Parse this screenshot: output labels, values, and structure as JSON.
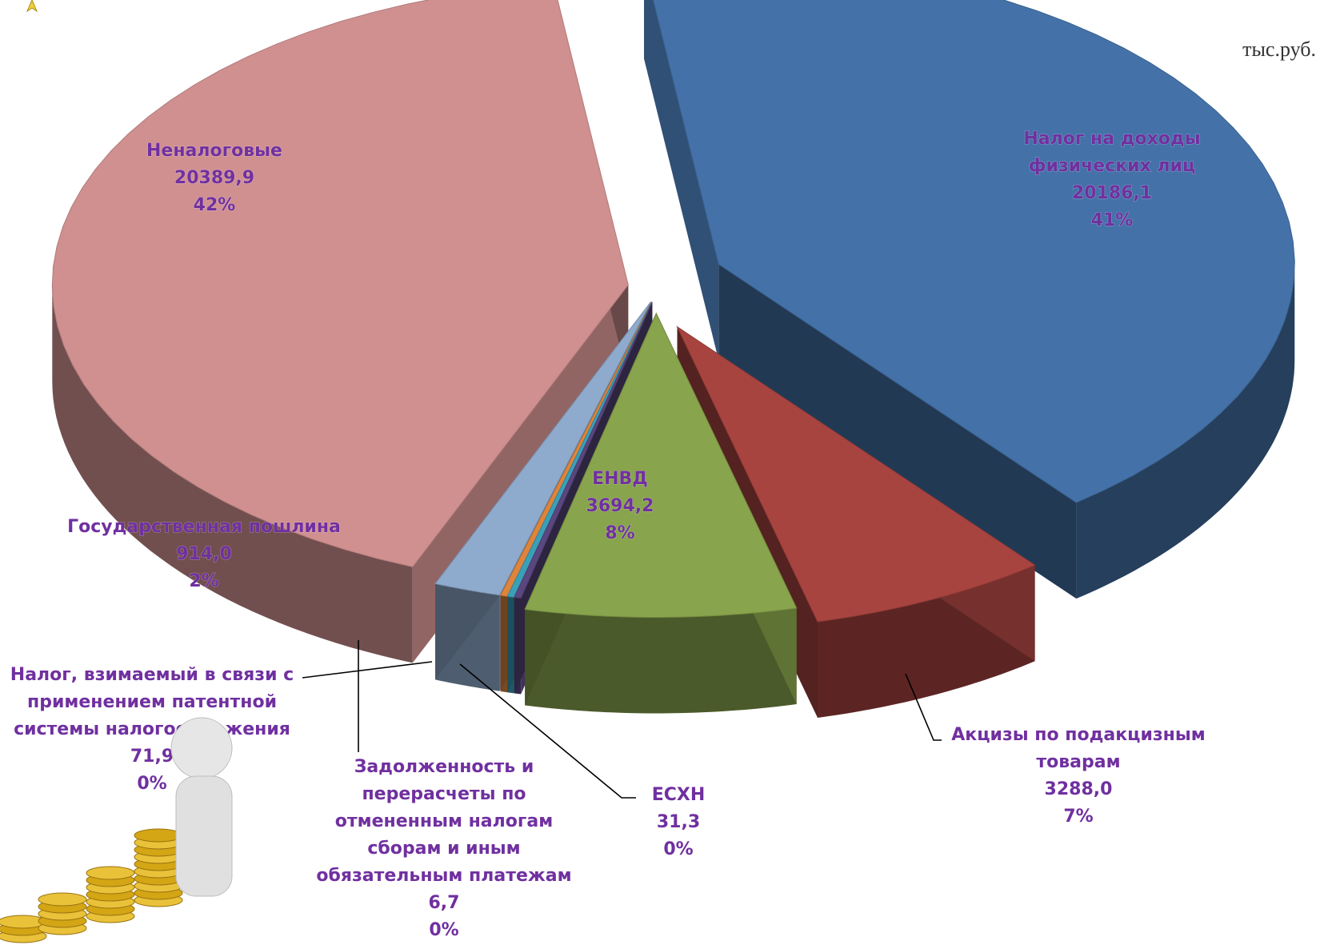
{
  "unit_label": "тыс.руб.",
  "colors": {
    "ndfl": "#4472a8",
    "akcizy": "#a84440",
    "envd": "#88a44c",
    "eshn": "#5a4780",
    "zadolzh": "#3aa0b8",
    "patent": "#e0843c",
    "gosposhlina": "#8eaacc",
    "nenalog": "#d09090"
  },
  "chart_data": {
    "type": "pie",
    "unit": "тыс.руб.",
    "slices": [
      {
        "key": "ndfl",
        "label_lines": [
          "Налог на доходы",
          "физических лиц"
        ],
        "value": 20186.1,
        "value_text": "20186,1",
        "percent_text": "41%"
      },
      {
        "key": "akcizy",
        "label_lines": [
          "Акцизы по подакцизным",
          "товарам"
        ],
        "value": 3288.0,
        "value_text": "3288,0",
        "percent_text": "7%"
      },
      {
        "key": "envd",
        "label_lines": [
          "ЕНВД"
        ],
        "value": 3694.2,
        "value_text": "3694,2",
        "percent_text": "8%"
      },
      {
        "key": "eshn",
        "label_lines": [
          "ЕСХН"
        ],
        "value": 31.3,
        "value_text": "31,3",
        "percent_text": "0%"
      },
      {
        "key": "zadolzh",
        "label_lines": [
          "Задолженность и",
          "перерасчеты по",
          "отмененным  налогам",
          "сборам  и иным",
          "обязательным платежам"
        ],
        "value": 6.7,
        "value_text": "6,7",
        "percent_text": "0%"
      },
      {
        "key": "patent",
        "label_lines": [
          "Налог, взимаемый в связи с",
          "применением патентной",
          "системы налогообложения"
        ],
        "value": 71.9,
        "value_text": "71,9",
        "percent_text": "0%"
      },
      {
        "key": "gosposhlina",
        "label_lines": [
          "Государственная пошлина"
        ],
        "value": 914.0,
        "value_text": "914,0",
        "percent_text": "2%"
      },
      {
        "key": "nenalog",
        "label_lines": [
          "Неналоговые"
        ],
        "value": 20389.9,
        "value_text": "20389,9",
        "percent_text": "42%"
      }
    ]
  }
}
